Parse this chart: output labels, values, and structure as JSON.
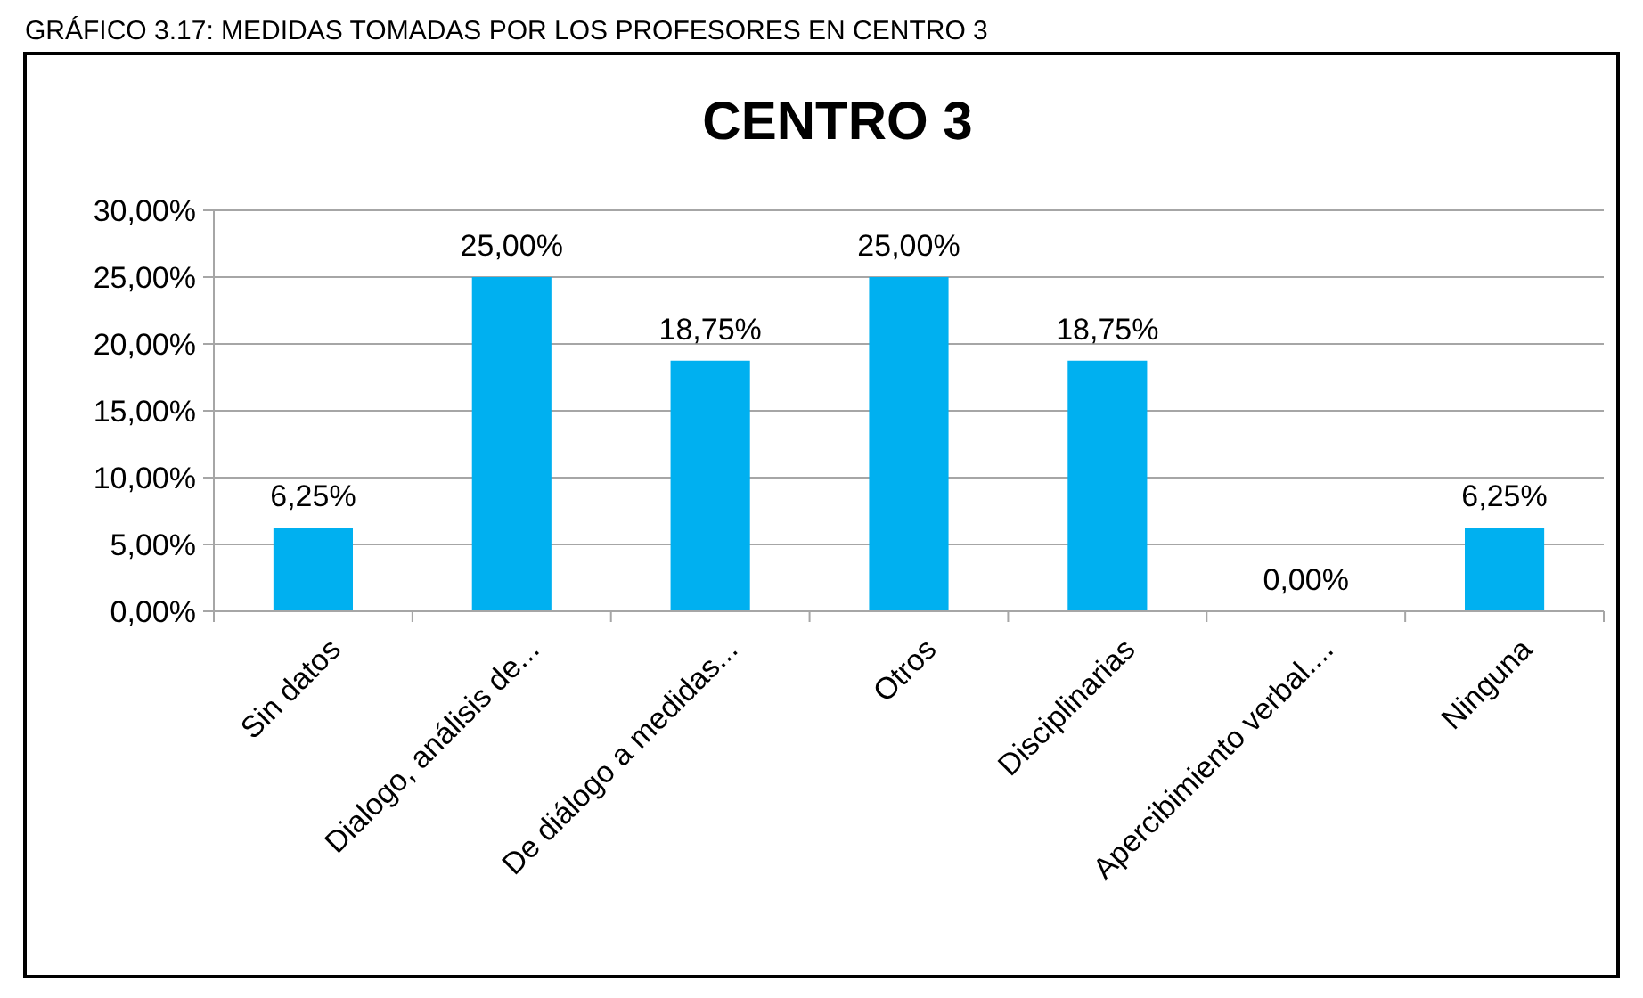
{
  "chart_data": {
    "type": "bar",
    "title": "CENTRO 3",
    "annotations": [
      "GRÁFICO 3.17: MEDIDAS TOMADAS POR LOS PROFESORES EN CENTRO 3"
    ],
    "categories": [
      "Sin datos",
      "Dialogo, análisis de...",
      "De diálogo a medidas...",
      "Otros",
      "Disciplinarias",
      "Apercibimiento verbal....",
      "Ninguna"
    ],
    "values": [
      6.25,
      25,
      18.75,
      25,
      18.75,
      0,
      6.25
    ],
    "value_labels": [
      "6,25%",
      "25,00%",
      "18,75%",
      "25,00%",
      "18,75%",
      "0,00%",
      "6,25%"
    ],
    "color": "#00b0f0",
    "ylim": [
      0,
      30
    ],
    "yticks": [
      {
        "value": 0,
        "label": "0,00%"
      },
      {
        "value": 5,
        "label": "5,00%"
      },
      {
        "value": 10,
        "label": "10,00%"
      },
      {
        "value": 15,
        "label": "15,00%"
      },
      {
        "value": 20,
        "label": "20,00%"
      },
      {
        "value": 25,
        "label": "25,00%"
      },
      {
        "value": 30,
        "label": "30,00%"
      }
    ],
    "grid": "y"
  }
}
